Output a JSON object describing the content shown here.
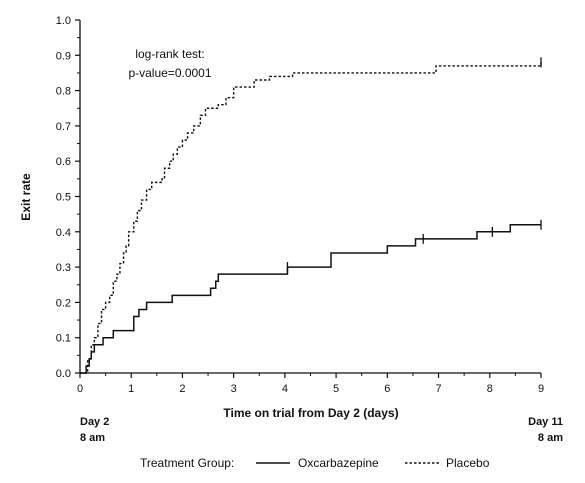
{
  "chart_data": {
    "type": "line",
    "ylabel": "Exit rate",
    "xlabel": "Time on trial from Day 2 (days)",
    "xlim": [
      0,
      9
    ],
    "ylim": [
      0.0,
      1.0
    ],
    "x_ticks": [
      0,
      1,
      2,
      3,
      4,
      5,
      6,
      7,
      8,
      9
    ],
    "y_ticks": [
      "0.0",
      "0.1",
      "0.2",
      "0.3",
      "0.4",
      "0.5",
      "0.6",
      "0.7",
      "0.8",
      "0.9",
      "1.0"
    ],
    "x_start_label": [
      "Day 2",
      "8 am"
    ],
    "x_end_label": [
      "Day 11",
      "8 am"
    ],
    "annotation": [
      "log-rank test:",
      "p-value=0.0001"
    ],
    "legend": {
      "title": "Treatment Group:",
      "position": "bottom"
    },
    "series": [
      {
        "name": "Oxcarbazepine",
        "style": "solid",
        "color": "#111111",
        "step_points": [
          [
            0.0,
            0.0
          ],
          [
            0.12,
            0.02
          ],
          [
            0.18,
            0.04
          ],
          [
            0.22,
            0.06
          ],
          [
            0.28,
            0.08
          ],
          [
            0.45,
            0.1
          ],
          [
            0.65,
            0.12
          ],
          [
            1.05,
            0.16
          ],
          [
            1.15,
            0.18
          ],
          [
            1.3,
            0.2
          ],
          [
            1.8,
            0.22
          ],
          [
            2.55,
            0.24
          ],
          [
            2.65,
            0.26
          ],
          [
            2.7,
            0.28
          ],
          [
            4.05,
            0.3
          ],
          [
            4.9,
            0.34
          ],
          [
            6.0,
            0.36
          ],
          [
            6.55,
            0.38
          ],
          [
            7.75,
            0.4
          ],
          [
            8.4,
            0.42
          ],
          [
            9.0,
            0.42
          ]
        ],
        "censor_marks": [
          [
            4.05,
            0.3
          ],
          [
            6.7,
            0.38
          ],
          [
            8.05,
            0.4
          ],
          [
            9.0,
            0.42
          ]
        ]
      },
      {
        "name": "Placebo",
        "style": "dotted",
        "color": "#111111",
        "step_points": [
          [
            0.0,
            0.0
          ],
          [
            0.15,
            0.04
          ],
          [
            0.22,
            0.08
          ],
          [
            0.28,
            0.1
          ],
          [
            0.35,
            0.14
          ],
          [
            0.42,
            0.18
          ],
          [
            0.5,
            0.2
          ],
          [
            0.58,
            0.22
          ],
          [
            0.65,
            0.26
          ],
          [
            0.72,
            0.28
          ],
          [
            0.78,
            0.31
          ],
          [
            0.85,
            0.34
          ],
          [
            0.9,
            0.36
          ],
          [
            0.95,
            0.4
          ],
          [
            1.05,
            0.43
          ],
          [
            1.12,
            0.46
          ],
          [
            1.2,
            0.49
          ],
          [
            1.3,
            0.52
          ],
          [
            1.4,
            0.54
          ],
          [
            1.6,
            0.55
          ],
          [
            1.65,
            0.58
          ],
          [
            1.75,
            0.6
          ],
          [
            1.82,
            0.62
          ],
          [
            1.9,
            0.64
          ],
          [
            2.0,
            0.66
          ],
          [
            2.1,
            0.68
          ],
          [
            2.22,
            0.7
          ],
          [
            2.35,
            0.73
          ],
          [
            2.45,
            0.75
          ],
          [
            2.7,
            0.76
          ],
          [
            2.85,
            0.78
          ],
          [
            3.0,
            0.81
          ],
          [
            3.4,
            0.83
          ],
          [
            3.7,
            0.84
          ],
          [
            4.15,
            0.85
          ],
          [
            6.95,
            0.87
          ],
          [
            7.1,
            0.87
          ],
          [
            9.0,
            0.88
          ]
        ],
        "censor_marks": [
          [
            9.0,
            0.88
          ]
        ]
      }
    ]
  }
}
